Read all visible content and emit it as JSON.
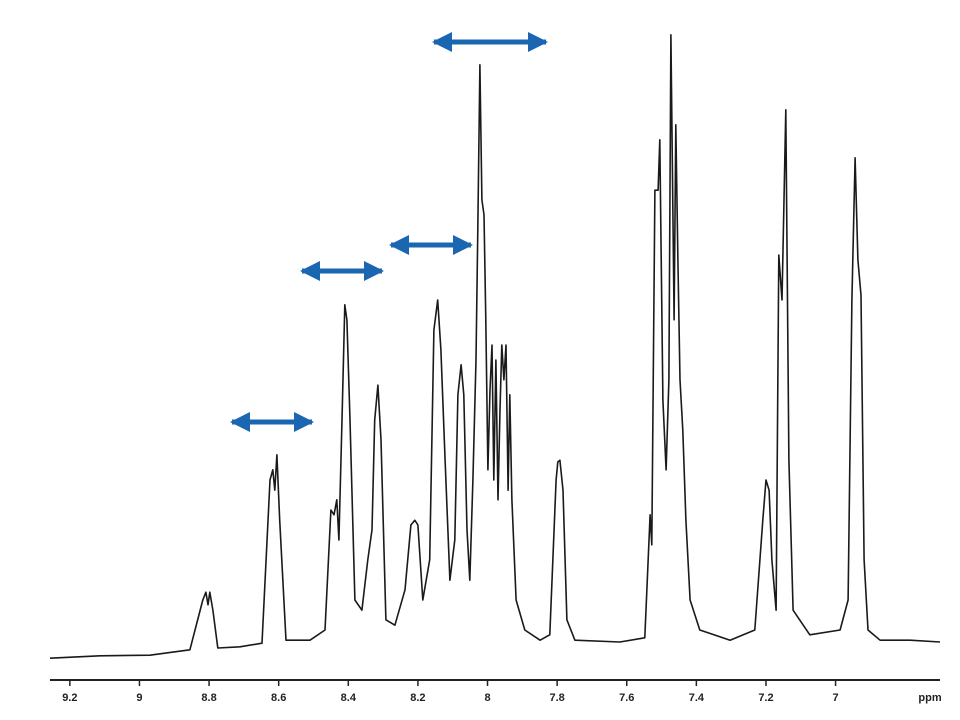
{
  "chart_data": {
    "type": "line",
    "x_label": "ppm",
    "color": "#1a1a1a",
    "xlim": [
      9.257,
      6.7
    ],
    "ylim": [
      0,
      105
    ],
    "xticks": [
      9.2,
      9.0,
      8.8,
      8.6,
      8.4,
      8.2,
      8.0,
      7.8,
      7.6,
      7.4,
      7.2,
      7.0
    ],
    "x": [
      9.257,
      9.114,
      8.97,
      8.855,
      8.818,
      8.809,
      8.803,
      8.798,
      8.789,
      8.775,
      8.711,
      8.648,
      8.625,
      8.617,
      8.611,
      8.605,
      8.597,
      8.579,
      8.51,
      8.467,
      8.45,
      8.441,
      8.433,
      8.427,
      8.418,
      8.41,
      8.404,
      8.395,
      8.381,
      8.361,
      8.344,
      8.332,
      8.324,
      8.315,
      8.306,
      8.292,
      8.266,
      8.237,
      8.22,
      8.209,
      8.2,
      8.186,
      8.166,
      8.154,
      8.143,
      8.134,
      8.122,
      8.108,
      8.094,
      8.085,
      8.076,
      8.068,
      8.059,
      8.051,
      8.042,
      8.033,
      8.028,
      8.022,
      8.016,
      8.01,
      8.005,
      7.999,
      7.993,
      7.987,
      7.982,
      7.976,
      7.97,
      7.964,
      7.959,
      7.953,
      7.947,
      7.941,
      7.936,
      7.93,
      7.918,
      7.893,
      7.849,
      7.821,
      7.803,
      7.798,
      7.792,
      7.783,
      7.772,
      7.749,
      7.62,
      7.548,
      7.533,
      7.528,
      7.519,
      7.51,
      7.505,
      7.496,
      7.487,
      7.479,
      7.473,
      7.464,
      7.459,
      7.453,
      7.447,
      7.439,
      7.43,
      7.418,
      7.39,
      7.303,
      7.232,
      7.209,
      7.2,
      7.191,
      7.183,
      7.171,
      7.163,
      7.154,
      7.143,
      7.134,
      7.122,
      7.074,
      6.987,
      6.964,
      6.953,
      6.944,
      6.936,
      6.927,
      6.918,
      6.907,
      6.872,
      6.786,
      6.7
    ],
    "values": [
      0.3,
      0.7,
      0.8,
      1.7,
      10,
      11.3,
      9.2,
      11.3,
      8.3,
      2,
      2.2,
      2.8,
      30,
      31.7,
      28.3,
      34.2,
      23.3,
      3.3,
      3.3,
      5,
      25,
      24.2,
      26.7,
      20,
      40,
      59.2,
      56.7,
      40,
      10,
      8.3,
      16.7,
      21.7,
      40,
      45.8,
      36.7,
      6.7,
      5.8,
      11.7,
      22.5,
      23.3,
      22.5,
      10,
      16.7,
      55,
      60,
      51.7,
      33.3,
      13.3,
      20,
      44.2,
      49.2,
      44.2,
      21.7,
      13.3,
      30,
      50,
      71.7,
      99.2,
      76.7,
      74.2,
      56.7,
      31.7,
      45,
      52.5,
      30,
      50,
      26.7,
      41.7,
      52.5,
      46.7,
      52.5,
      28.3,
      44.2,
      26.7,
      10,
      5,
      3.3,
      4.2,
      30,
      33,
      33.3,
      28.3,
      6.7,
      3.3,
      3,
      3.7,
      24.2,
      19.2,
      78.3,
      78.3,
      86.7,
      43.3,
      31.7,
      46.7,
      104.2,
      56.7,
      89.2,
      66.7,
      46.7,
      38.3,
      23.3,
      10,
      5,
      3.3,
      5,
      23.3,
      30,
      28.3,
      16.7,
      8.3,
      67.5,
      60,
      91.7,
      33.3,
      8.3,
      4.2,
      5,
      10,
      60,
      83.7,
      66.7,
      60.8,
      16.7,
      5,
      3.3,
      3.3,
      3
    ]
  }
}
